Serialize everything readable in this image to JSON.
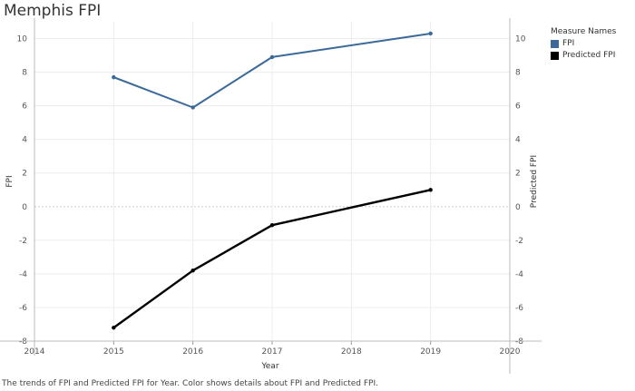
{
  "title": "Memphis FPI",
  "caption": "The trends of FPI and Predicted FPI for Year.  Color shows details about FPI and Predicted FPI.",
  "legend": {
    "title": "Measure Names",
    "items": [
      {
        "label": "FPI",
        "color": "#3b6a9a"
      },
      {
        "label": "Predicted FPI",
        "color": "#000000"
      }
    ]
  },
  "chart_data": {
    "type": "line",
    "title": "Memphis FPI",
    "xlabel": "Year",
    "ylabel": "FPI",
    "y2label": "Predicted FPI",
    "x_ticks": [
      "2014",
      "2015",
      "2016",
      "2017",
      "2018",
      "2019",
      "2020"
    ],
    "xlim": [
      2014,
      2020
    ],
    "y_ticks": [
      "10",
      "8",
      "6",
      "4",
      "2",
      "0",
      "-2",
      "-4",
      "-6",
      "-8"
    ],
    "ylim": [
      -8,
      11
    ],
    "series": [
      {
        "name": "FPI",
        "color": "#3b6a9a",
        "x": [
          2015,
          2016,
          2017,
          2019
        ],
        "values": [
          7.7,
          5.9,
          8.9,
          10.3
        ]
      },
      {
        "name": "Predicted FPI",
        "color": "#000000",
        "x": [
          2015,
          2016,
          2017,
          2019
        ],
        "values": [
          -7.2,
          -3.8,
          -1.1,
          1.0
        ]
      }
    ],
    "grid": true,
    "legend_position": "top-right"
  }
}
